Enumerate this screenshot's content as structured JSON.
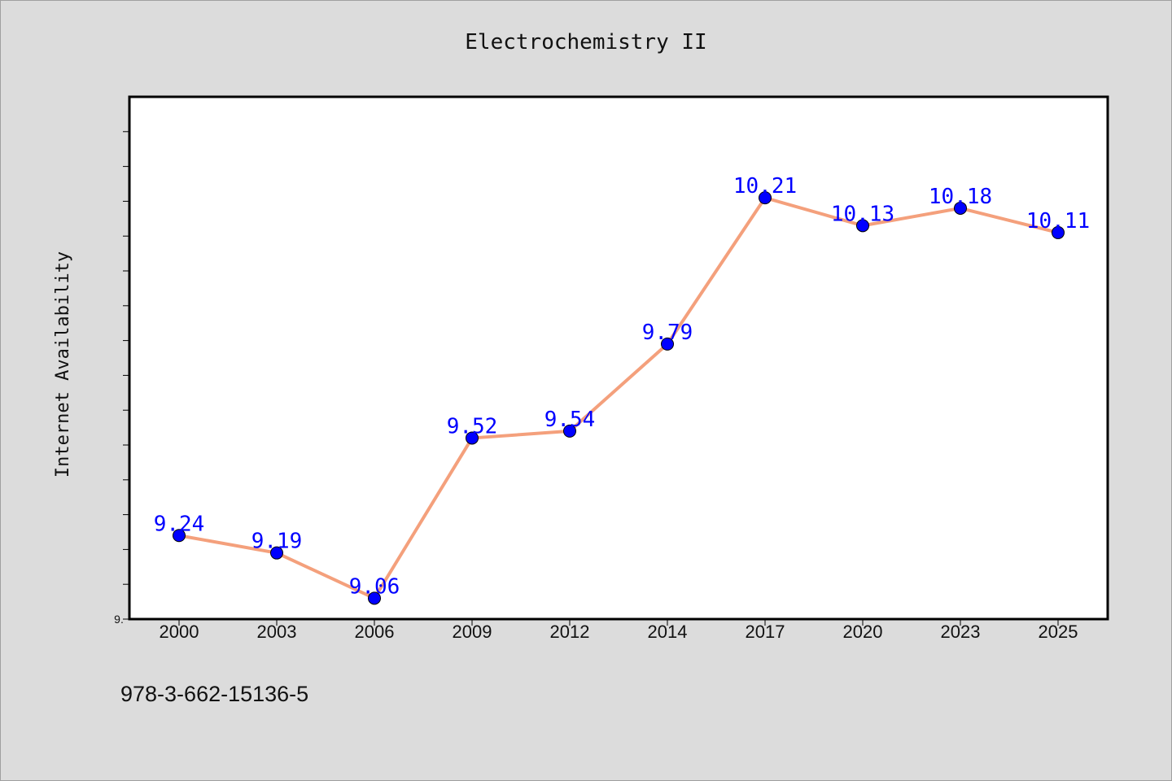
{
  "chart_data": {
    "type": "line",
    "title": "Electrochemistry II",
    "xlabel": "",
    "ylabel": "Internet Availability",
    "categories": [
      "2000",
      "2003",
      "2006",
      "2009",
      "2012",
      "2014",
      "2017",
      "2020",
      "2023",
      "2025"
    ],
    "series": [
      {
        "values": [
          9.24,
          9.19,
          9.06,
          9.52,
          9.54,
          9.79,
          10.21,
          10.13,
          10.18,
          10.11
        ],
        "data_labels": [
          "9.24",
          "9.19",
          "9.06",
          "9.52",
          "9.54",
          "9.79",
          "10.21",
          "10.13",
          "10.18",
          "10.11"
        ],
        "line_color": "#f4a07c",
        "marker_color": "#0000ff"
      }
    ],
    "ylim": [
      9.0,
      10.5
    ],
    "y_tick_label": "9.",
    "grid": false,
    "legend": "none"
  },
  "footer": {
    "isbn": "978-3-662-15136-5"
  }
}
